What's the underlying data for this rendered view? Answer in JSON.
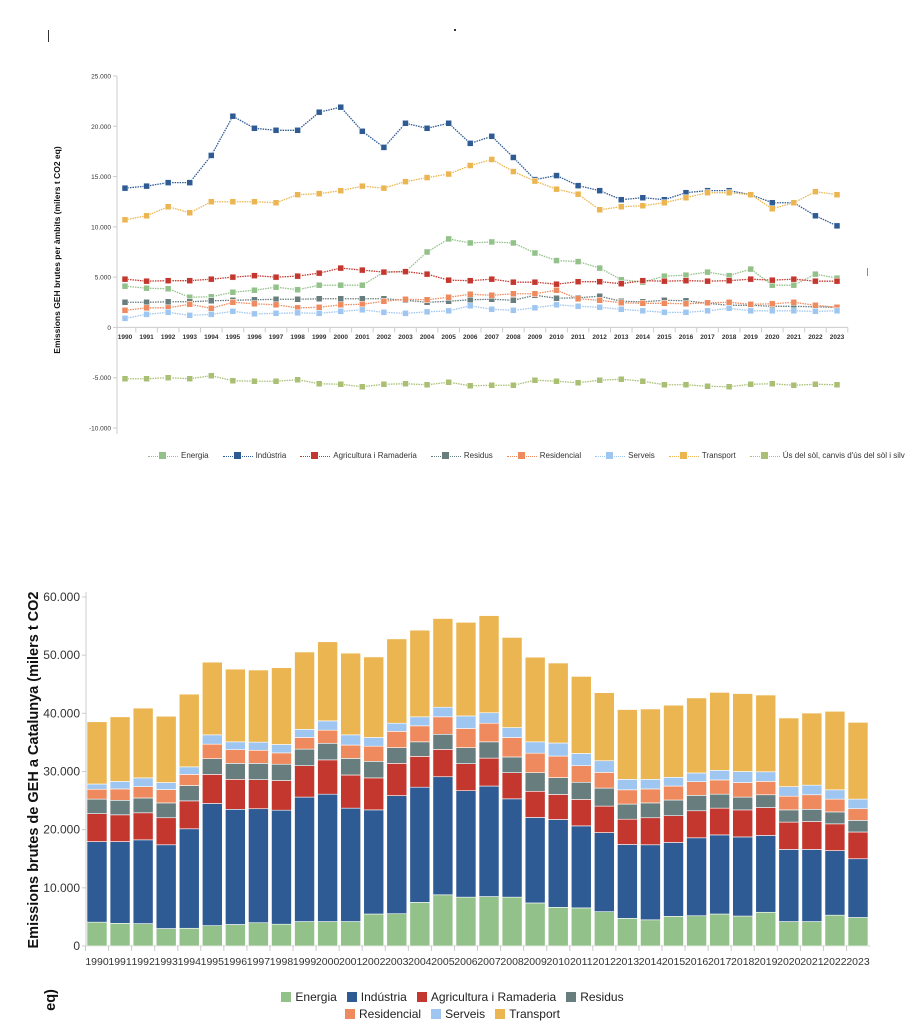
{
  "colors": {
    "Energia": "#93c18a",
    "Indústria": "#2f5b94",
    "Agricultura i Ramaderia": "#c3372f",
    "Residus": "#687d7e",
    "Residencial": "#ee8a5e",
    "Serveis": "#9fc6f0",
    "Transport": "#ebb651",
    "Ús del sòl, canvis d'ús del sòl i silvicultura": "#a9bf73"
  },
  "chart_data": [
    {
      "type": "line",
      "ylabel": "Emissions GEH brutes per àmbits (milers t CO2 eq)",
      "xlabel": "",
      "ylim": [
        -10000,
        25000
      ],
      "yticks": [
        "25.000",
        "20.000",
        "15.000",
        "10.000",
        "5.000",
        "0",
        "-5.000",
        "-10.000"
      ],
      "ytick_values": [
        25000,
        20000,
        15000,
        10000,
        5000,
        0,
        -5000,
        -10000
      ],
      "grid": false,
      "legend_position": "bottom",
      "marker": "square",
      "line_style": "dotted",
      "x": [
        "1990",
        "1991",
        "1992",
        "1993",
        "1994",
        "1995",
        "1996",
        "1997",
        "1998",
        "1999",
        "2000",
        "2001",
        "2002",
        "2003",
        "2004",
        "2005",
        "2006",
        "2007",
        "2008",
        "2009",
        "2010",
        "2011",
        "2012",
        "2013",
        "2014",
        "2015",
        "2016",
        "2017",
        "2018",
        "2019",
        "2020",
        "2021",
        "2022",
        "2023"
      ],
      "series": [
        {
          "name": "Energia",
          "values": [
            4100,
            3900,
            3850,
            3000,
            3050,
            3500,
            3700,
            4000,
            3750,
            4200,
            4200,
            4200,
            5500,
            5550,
            7500,
            8800,
            8400,
            8500,
            8400,
            7400,
            6650,
            6550,
            5900,
            4750,
            4500,
            5100,
            5200,
            5500,
            5150,
            5800,
            4200,
            4200,
            5300,
            4900
          ]
        },
        {
          "name": "Indústria",
          "values": [
            13850,
            14050,
            14400,
            14400,
            17100,
            21000,
            19800,
            19600,
            19600,
            21400,
            21900,
            19500,
            17900,
            20300,
            19800,
            20300,
            18300,
            19000,
            16900,
            14700,
            15100,
            14100,
            13600,
            12700,
            12900,
            12700,
            13400,
            13600,
            13600,
            13200,
            12400,
            12400,
            11100,
            10100
          ]
        },
        {
          "name": "Agricultura i Ramaderia",
          "values": [
            4800,
            4600,
            4650,
            4650,
            4800,
            5000,
            5150,
            5000,
            5100,
            5400,
            5900,
            5700,
            5500,
            5550,
            5300,
            4700,
            4650,
            4800,
            4500,
            4500,
            4300,
            4550,
            4550,
            4350,
            4650,
            4600,
            4650,
            4600,
            4650,
            4800,
            4700,
            4800,
            4600,
            4600
          ]
        },
        {
          "name": "Residus",
          "values": [
            2500,
            2500,
            2550,
            2550,
            2650,
            2700,
            2750,
            2800,
            2800,
            2850,
            2850,
            2850,
            2850,
            2700,
            2500,
            2600,
            2750,
            2800,
            2700,
            3200,
            2900,
            2950,
            3100,
            2600,
            2550,
            2700,
            2650,
            2400,
            2200,
            2200,
            2100,
            2100,
            2050,
            2000
          ]
        },
        {
          "name": "Residencial",
          "values": [
            1700,
            1950,
            1950,
            2300,
            1900,
            2500,
            2350,
            2250,
            1950,
            2000,
            2250,
            2300,
            2600,
            2800,
            2750,
            3000,
            3300,
            3200,
            3350,
            3350,
            3700,
            2850,
            2700,
            2450,
            2400,
            2400,
            2350,
            2450,
            2500,
            2300,
            2350,
            2500,
            2200,
            2000
          ]
        },
        {
          "name": "Serveis",
          "values": [
            900,
            1300,
            1500,
            1200,
            1300,
            1600,
            1350,
            1400,
            1450,
            1400,
            1600,
            1750,
            1500,
            1400,
            1550,
            1650,
            2150,
            1800,
            1700,
            1950,
            2250,
            2100,
            2000,
            1800,
            1650,
            1500,
            1500,
            1650,
            1900,
            1650,
            1650,
            1650,
            1600,
            1650
          ]
        },
        {
          "name": "Transport",
          "values": [
            10700,
            11100,
            12000,
            11400,
            12500,
            12500,
            12500,
            12400,
            13200,
            13300,
            13600,
            14050,
            13850,
            14500,
            14900,
            15250,
            16100,
            16700,
            15500,
            14550,
            13750,
            13250,
            11700,
            12000,
            12100,
            12400,
            12900,
            13400,
            13400,
            13200,
            11800,
            12400,
            13500,
            13200
          ]
        },
        {
          "name": "Ús del sòl, canvis d'ús del sòl i silvicultura",
          "values": [
            -5100,
            -5100,
            -5000,
            -5100,
            -4800,
            -5300,
            -5350,
            -5350,
            -5200,
            -5600,
            -5650,
            -5900,
            -5650,
            -5600,
            -5700,
            -5450,
            -5800,
            -5750,
            -5750,
            -5250,
            -5350,
            -5500,
            -5250,
            -5150,
            -5350,
            -5700,
            -5700,
            -5850,
            -5900,
            -5650,
            -5600,
            -5750,
            -5650,
            -5700
          ]
        }
      ]
    },
    {
      "type": "bar",
      "stacked": true,
      "ylabel": "Emissions brutes de GEH a Catalunya (milers t CO2 eq)",
      "xlabel": "",
      "ylim": [
        0,
        60000
      ],
      "yticks": [
        "0",
        "10.000",
        "20.000",
        "30.000",
        "40.000",
        "50.000",
        "60.000"
      ],
      "ytick_values": [
        0,
        10000,
        20000,
        30000,
        40000,
        50000,
        60000
      ],
      "grid": false,
      "legend_position": "bottom",
      "categories": [
        "1990",
        "1991",
        "1992",
        "1993",
        "1994",
        "1995",
        "1996",
        "1997",
        "1998",
        "1999",
        "2000",
        "2001",
        "2002",
        "2003",
        "2004",
        "2005",
        "2006",
        "2007",
        "2008",
        "2009",
        "2010",
        "2011",
        "2012",
        "2013",
        "2014",
        "2015",
        "2016",
        "2017",
        "2018",
        "2019",
        "2020",
        "2021",
        "2022",
        "2023"
      ],
      "series_names": [
        "Energia",
        "Indústria",
        "Agricultura i Ramaderia",
        "Residus",
        "Residencial",
        "Serveis",
        "Transport"
      ],
      "note_values_from": "same series values as the line chart (Energia ... Transport)"
    }
  ],
  "legend_top": [
    "Energia",
    "Indústria",
    "Agricultura i Ramaderia",
    "Residus",
    "Residencial",
    "Serveis",
    "Transport",
    "Ús del sòl, canvis d'ús del sòl i silvicultura"
  ],
  "legend_bottom_row1": [
    "Energia",
    "Indústria",
    "Agricultura i Ramaderia",
    "Residus"
  ],
  "legend_bottom_row2": [
    "Residencial",
    "Serveis",
    "Transport"
  ]
}
